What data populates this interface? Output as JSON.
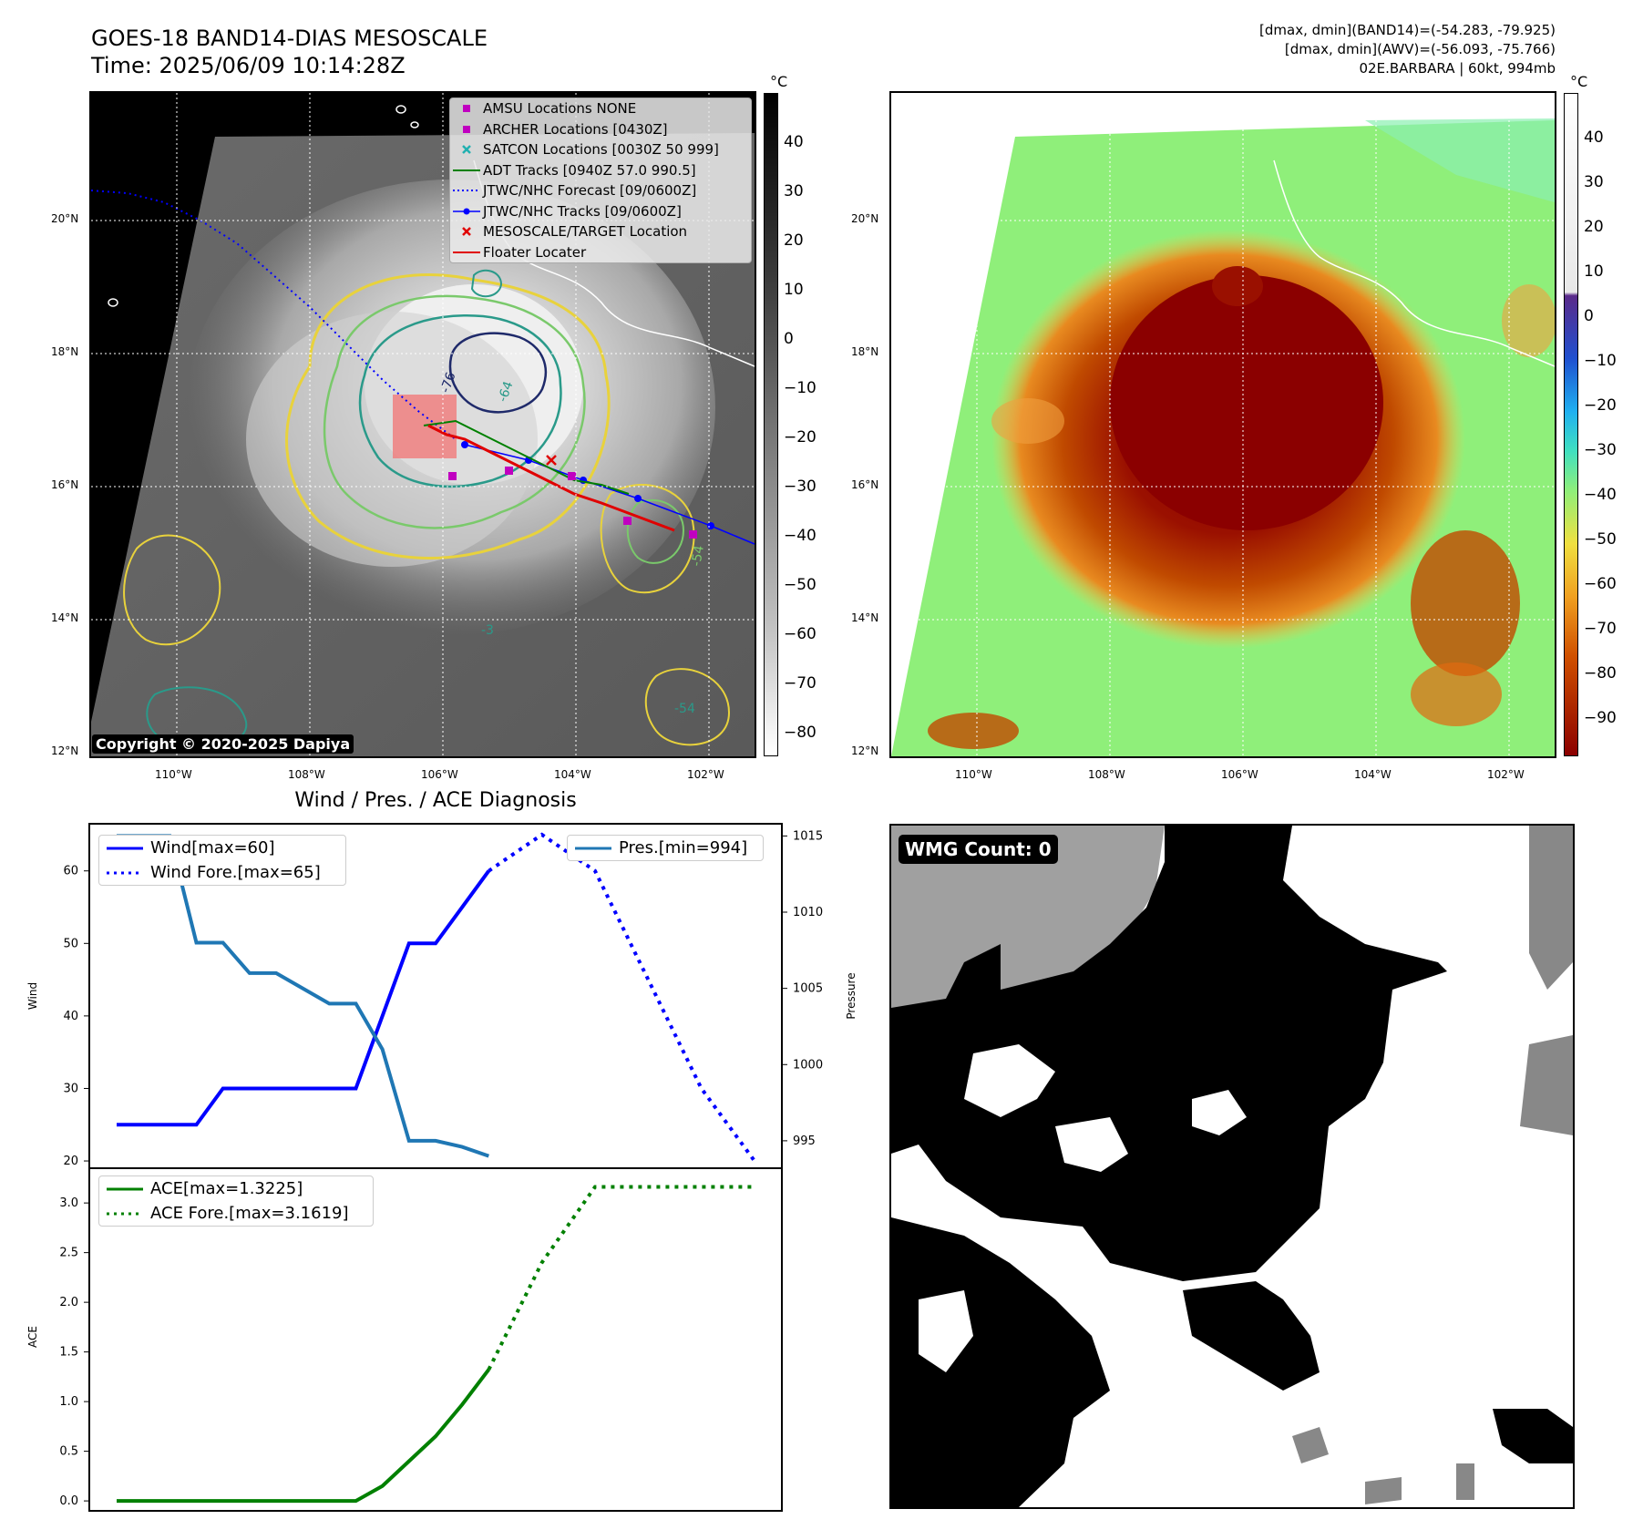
{
  "header": {
    "title_line1": "GOES-18 BAND14-DIAS MESOSCALE",
    "title_line2": "Time: 2025/06/09 10:14:28Z",
    "info_line1": "[dmax, dmin](BAND14)=(-54.283, -79.925)",
    "info_line2": "[dmax, dmin](AWV)=(-56.093, -75.766)",
    "info_line3": "02E.BARBARA | 60kt, 994mb"
  },
  "map_axes": {
    "lat_labels": [
      "20°N",
      "18°N",
      "16°N",
      "14°N",
      "12°N"
    ],
    "lon_labels": [
      "110°W",
      "108°W",
      "106°W",
      "104°W",
      "102°W"
    ]
  },
  "ir_colorbar": {
    "unit": "°C",
    "ticks": [
      "40",
      "30",
      "20",
      "10",
      "0",
      "−10",
      "−20",
      "−30",
      "−40",
      "−50",
      "−60",
      "−70",
      "−80"
    ]
  },
  "awv_colorbar": {
    "unit": "°C",
    "ticks": [
      "40",
      "30",
      "20",
      "10",
      "0",
      "−10",
      "−20",
      "−30",
      "−40",
      "−50",
      "−60",
      "−70",
      "−80",
      "−90"
    ]
  },
  "map_legend": [
    {
      "label": "AMSU Locations NONE",
      "kind": "square",
      "color": "#c000c0"
    },
    {
      "label": "ARCHER Locations [0430Z]",
      "kind": "square",
      "color": "#c000c0"
    },
    {
      "label": "SATCON Locations [0030Z 50 999]",
      "kind": "x",
      "color": "#20b0b0"
    },
    {
      "label": "ADT Tracks [0940Z 57.0 990.5]",
      "kind": "line",
      "color": "#008000"
    },
    {
      "label": "JTWC/NHC Forecast [09/0600Z]",
      "kind": "dotted",
      "color": "#0000ff"
    },
    {
      "label": "JTWC/NHC Tracks [09/0600Z]",
      "kind": "dotline",
      "color": "#0000ff"
    },
    {
      "label": "MESOSCALE/TARGET Location",
      "kind": "x",
      "color": "#e00000"
    },
    {
      "label": "Floater Locater",
      "kind": "line",
      "color": "#e00000"
    }
  ],
  "copyright": "Copyright © 2020-2025 Dapiya",
  "contour_labels": [
    "-76",
    "-64",
    "-54",
    "-3",
    "-54"
  ],
  "wmg": {
    "label": "WMG Count: 0"
  },
  "diag_title": "Wind / Pres. / ACE Diagnosis",
  "chart_data": [
    {
      "type": "line",
      "title": "Wind / Pres. / ACE Diagnosis",
      "ylabel": "Wind",
      "y2label": "Pressure",
      "ylim": [
        19,
        66.5
      ],
      "y2lim": [
        993.2,
        1015.8
      ],
      "yticks": [
        20,
        30,
        40,
        50,
        60
      ],
      "y2ticks": [
        995,
        1000,
        1005,
        1010,
        1015
      ],
      "x": [
        0,
        1,
        2,
        3,
        4,
        5,
        6,
        7,
        8,
        9,
        10,
        11,
        12,
        13,
        14,
        15,
        16,
        17,
        18,
        19,
        20,
        21,
        22,
        23,
        24
      ],
      "series": [
        {
          "name": "Wind[max=60]",
          "axis": "left",
          "style": "solid",
          "color": "#0000ff",
          "x": [
            0,
            1,
            2,
            3,
            4,
            5,
            6,
            7,
            8,
            9,
            10,
            11,
            12,
            13,
            14
          ],
          "values": [
            25,
            25,
            25,
            25,
            30,
            30,
            30,
            30,
            30,
            30,
            40,
            50,
            50,
            55,
            60
          ]
        },
        {
          "name": "Wind Fore.[max=65]",
          "axis": "left",
          "style": "dotted",
          "color": "#0000ff",
          "x": [
            14,
            16,
            18,
            20,
            22,
            24
          ],
          "values": [
            60,
            65,
            60,
            45,
            30,
            20
          ]
        },
        {
          "name": "Pres.[min=994]",
          "axis": "right",
          "style": "solid",
          "color": "#1f77b4",
          "x": [
            0,
            1,
            2,
            3,
            4,
            5,
            6,
            7,
            8,
            9,
            10,
            11,
            12,
            13,
            14
          ],
          "values": [
            1015,
            1015,
            1015,
            1008,
            1008,
            1006,
            1006,
            1005,
            1004,
            1004,
            1001,
            995,
            995,
            994.6,
            994
          ]
        }
      ],
      "legend": [
        "top-left",
        "top-right"
      ]
    },
    {
      "type": "line",
      "ylabel": "ACE",
      "ylim": [
        -0.1,
        3.35
      ],
      "yticks": [
        "0.0",
        "0.5",
        "1.0",
        "1.5",
        "2.0",
        "2.5",
        "3.0"
      ],
      "series": [
        {
          "name": "ACE[max=1.3225]",
          "style": "solid",
          "color": "#008000",
          "x": [
            0,
            1,
            2,
            3,
            4,
            5,
            6,
            7,
            8,
            9,
            10,
            11,
            12,
            13,
            14
          ],
          "values": [
            0,
            0,
            0,
            0,
            0,
            0,
            0,
            0,
            0,
            0,
            0.15,
            0.4,
            0.65,
            0.97,
            1.3225
          ]
        },
        {
          "name": "ACE Fore.[max=3.1619]",
          "style": "dotted",
          "color": "#008000",
          "x": [
            14,
            16,
            18,
            20,
            22,
            24
          ],
          "values": [
            1.3225,
            2.4,
            3.1619,
            3.1619,
            3.1619,
            3.1619
          ]
        }
      ],
      "legend": "top-left"
    }
  ]
}
